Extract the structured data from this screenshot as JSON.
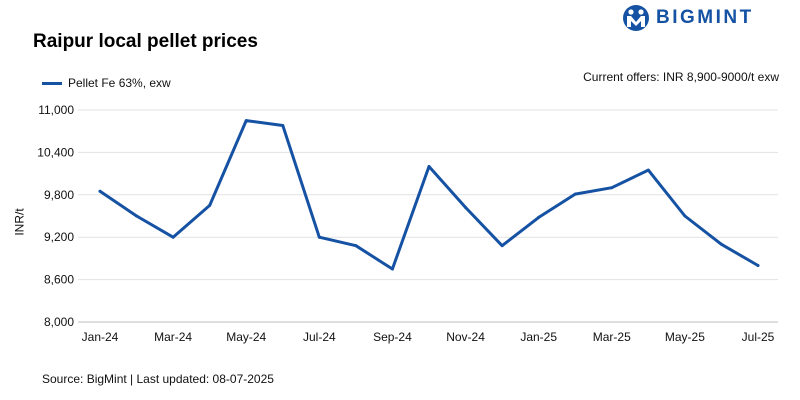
{
  "brand": {
    "name": "BIGMINT",
    "color": "#1552a3"
  },
  "header": {
    "title": "Raipur local pellet prices"
  },
  "note": "Current offers: INR 8,900-9000/t exw",
  "source": "Source: BigMint | Last updated: 08-07-2025",
  "chart_data": {
    "type": "line",
    "title": "Raipur local pellet prices",
    "xlabel": "",
    "ylabel": "INR/t",
    "ylim": [
      8000,
      11000
    ],
    "yticks": [
      8000,
      8600,
      9200,
      9800,
      10400,
      11000
    ],
    "ytick_labels": [
      "8,000",
      "8,600",
      "9,200",
      "9,800",
      "10,400",
      "11,000"
    ],
    "xtick_labels": [
      "Jan-24",
      "Mar-24",
      "May-24",
      "Jul-24",
      "Sep-24",
      "Nov-24",
      "Jan-25",
      "Mar-25",
      "May-25",
      "Jul-25"
    ],
    "categories": [
      "Jan-24",
      "Feb-24",
      "Mar-24",
      "Apr-24",
      "May-24",
      "Jun-24",
      "Jul-24",
      "Aug-24",
      "Sep-24",
      "Oct-24",
      "Nov-24",
      "Dec-24",
      "Jan-25",
      "Feb-25",
      "Mar-25",
      "Apr-25",
      "May-25",
      "Jun-25",
      "Jul-25"
    ],
    "series": [
      {
        "name": "Pellet Fe 63%, exw",
        "color": "#1552a3",
        "values": [
          9850,
          9500,
          9200,
          9650,
          10850,
          10780,
          9200,
          9080,
          8750,
          10200,
          9620,
          9080,
          9480,
          9810,
          9900,
          10150,
          9500,
          9100,
          8800
        ]
      }
    ],
    "grid": "horizontal",
    "legend": "top-left"
  }
}
